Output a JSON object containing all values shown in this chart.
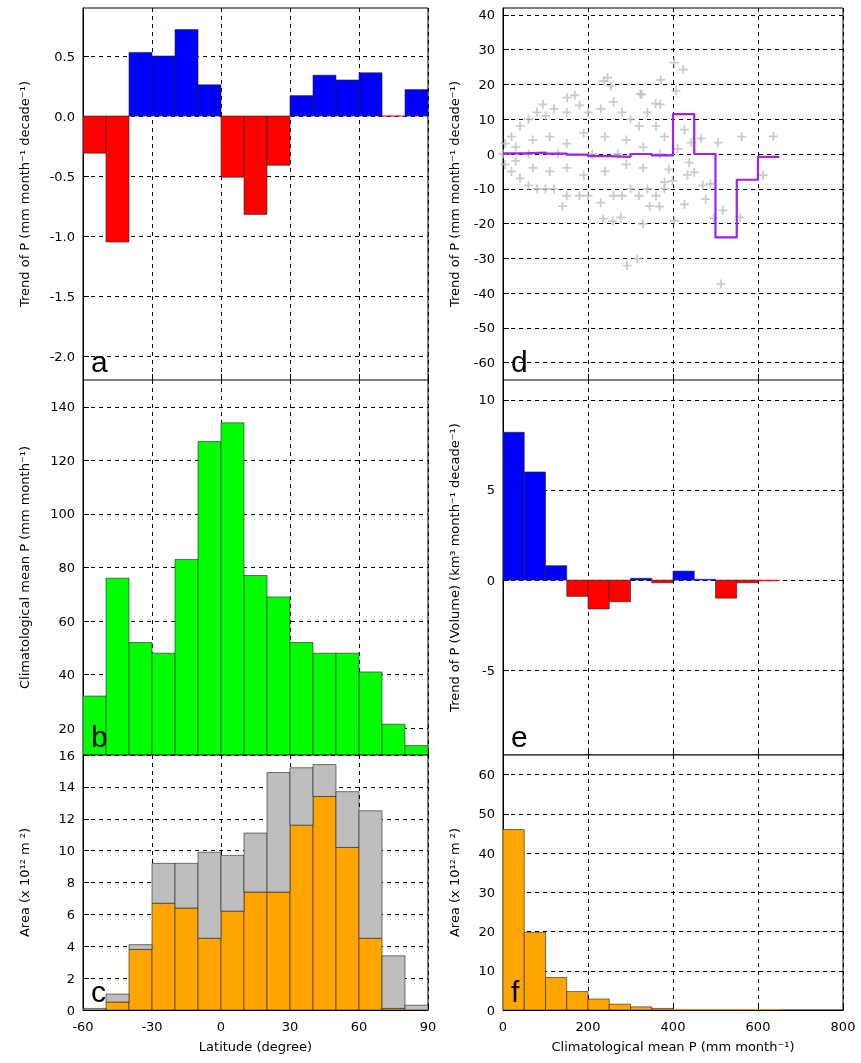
{
  "chart_data": [
    {
      "type": "histogram",
      "ylabel": "Trend of P (mm month⁻¹ decade⁻¹)",
      "annotations": [
        "a"
      ],
      "bins": [
        -60,
        -50,
        -40,
        -30,
        -20,
        -10,
        0,
        10,
        20,
        30,
        40,
        50,
        60,
        70,
        80,
        90
      ],
      "values": [
        -0.31,
        -1.05,
        0.53,
        0.5,
        0.72,
        0.26,
        -0.51,
        -0.82,
        -0.41,
        0.17,
        0.34,
        0.3,
        0.36,
        0,
        0.22
      ],
      "colors": [
        "#ff0000",
        "#ff0000",
        "#0000ff",
        "#0000ff",
        "#0000ff",
        "#0000ff",
        "#ff0000",
        "#ff0000",
        "#ff0000",
        "#0000ff",
        "#0000ff",
        "#0000ff",
        "#0000ff",
        "#ff0000",
        "#0000ff"
      ],
      "xlim": [
        -60,
        90
      ],
      "xticks": [
        -60,
        -30,
        0,
        30,
        60,
        90
      ],
      "ylim": [
        -2.2,
        0.9
      ],
      "yticks": [
        {
          "value": -2,
          "label": "-2.0"
        },
        {
          "value": -1.5,
          "label": "-1.5"
        },
        {
          "value": -1,
          "label": "-1.0"
        },
        {
          "value": -0.5,
          "label": "-0.5"
        },
        {
          "value": 0,
          "label": "0.0"
        },
        {
          "value": 0.5,
          "label": "0.5"
        }
      ],
      "grid": true,
      "tick_labels": "y"
    },
    {
      "type": "scatter",
      "ylabel": "Trend of P (mm month⁻¹ decade⁻¹)",
      "annotations": [
        "d"
      ],
      "series": [
        {
          "type": "scatter",
          "color": "#bebebe",
          "marker": "cross",
          "x": [
            0,
            5,
            5,
            20,
            20,
            40,
            40,
            60,
            60,
            80,
            80,
            100,
            100,
            120,
            120,
            150,
            150,
            180,
            180,
            200,
            200,
            230,
            230,
            260,
            260,
            280,
            280,
            300,
            300,
            320,
            320,
            340,
            340,
            360,
            360,
            380,
            380,
            30,
            30,
            70,
            70,
            110,
            110,
            150,
            150,
            190,
            190,
            240,
            240,
            290,
            290,
            330,
            330,
            370,
            60,
            130,
            210,
            270,
            246,
            254,
            237,
            371,
            403,
            424,
            407,
            323,
            359,
            427,
            466,
            506,
            562,
            636,
            411,
            443,
            438,
            434,
            450,
            470,
            477,
            488,
            427,
            403,
            399,
            517,
            496,
            558,
            612,
            513,
            292,
            316,
            329,
            258,
            236,
            277,
            140,
            368,
            345,
            380,
            390,
            151,
            169,
            94,
            326,
            370
          ],
          "values": [
            0,
            3,
            -3,
            5,
            -5,
            8,
            -7,
            10,
            -9,
            12,
            -10,
            11,
            -10,
            13,
            -10,
            12,
            -12,
            14,
            -12,
            12,
            -12,
            13,
            -14,
            15,
            -12,
            12,
            -12,
            10,
            -10,
            8,
            -12,
            12,
            -10,
            8,
            -12,
            5,
            -10,
            2,
            -2,
            4,
            -4,
            5,
            -5,
            3,
            -4,
            6,
            -6,
            5,
            -5,
            4,
            -3,
            2,
            -4,
            0,
            0,
            0,
            0,
            0,
            22,
            19.6,
            21,
            21.3,
            26.3,
            24.3,
            18.2,
            17.3,
            14.5,
            7,
            4.5,
            3.3,
            5,
            5.1,
            1.5,
            3.3,
            -2.5,
            -6,
            -5.3,
            -9,
            -13,
            -8.6,
            -14.5,
            -19.2,
            -7.7,
            -16.2,
            -18.4,
            -18.2,
            -6.1,
            -37.4,
            -32.1,
            -30.1,
            -20.1,
            -19.3,
            -18.6,
            -18.2,
            -15,
            -15.1,
            -15,
            -8.1,
            -4.4,
            16.2,
            16.9,
            14.3,
            17.1,
            14.3
          ]
        },
        {
          "type": "step",
          "color": "#a020f0",
          "x": [
            0,
            50,
            100,
            150,
            200,
            250,
            300,
            350,
            400,
            450,
            500,
            550,
            600,
            650
          ],
          "values": [
            0.2,
            0.4,
            0.1,
            -0.2,
            -0.6,
            -0.8,
            0,
            -0.4,
            11.5,
            0,
            -24,
            -7.4,
            -0.8,
            -0.8
          ]
        }
      ],
      "xlim": [
        0,
        800
      ],
      "xticks": [
        0,
        200,
        400,
        600,
        800
      ],
      "ylim": [
        -65,
        42
      ],
      "yticks": [
        -60,
        -50,
        -40,
        -30,
        -20,
        -10,
        0,
        10,
        20,
        30,
        40
      ],
      "grid": true,
      "tick_labels": "y"
    },
    {
      "type": "histogram",
      "ylabel": "Climatological mean P (mm month⁻¹)",
      "annotations": [
        "b"
      ],
      "bins": [
        -60,
        -50,
        -40,
        -30,
        -20,
        -10,
        0,
        10,
        20,
        30,
        40,
        50,
        60,
        70,
        80,
        90
      ],
      "values": [
        32,
        76,
        52,
        48,
        83,
        127,
        134,
        77,
        69,
        52,
        48,
        48,
        41,
        21.5,
        13.5
      ],
      "color": "#00ff00",
      "xlim": [
        -60,
        90
      ],
      "xticks": [
        -60,
        -30,
        0,
        30,
        60,
        90
      ],
      "ylim": [
        10,
        150
      ],
      "yticks": [
        20,
        40,
        60,
        80,
        100,
        120,
        140
      ],
      "grid": true,
      "tick_labels": "y"
    },
    {
      "type": "histogram",
      "ylabel": "Trend of P (Volume) (km³ month⁻¹ decade⁻¹)",
      "annotations": [
        "e"
      ],
      "bins": [
        0,
        50,
        100,
        150,
        200,
        250,
        300,
        350,
        400,
        450,
        500,
        550,
        600,
        650
      ],
      "values": [
        8.2,
        6,
        0.8,
        -0.9,
        -1.6,
        -1.2,
        0.1,
        -0.15,
        0.5,
        0.04,
        -1,
        -0.15,
        -0.04
      ],
      "colors": [
        "#0000ff",
        "#0000ff",
        "#0000ff",
        "#ff0000",
        "#ff0000",
        "#ff0000",
        "#0000ff",
        "#ff0000",
        "#0000ff",
        "#0000ff",
        "#ff0000",
        "#ff0000",
        "#ff0000"
      ],
      "xlim": [
        0,
        800
      ],
      "xticks": [
        0,
        200,
        400,
        600,
        800
      ],
      "ylim": [
        -9.7,
        11.1
      ],
      "yticks": [
        -5,
        0,
        5,
        10
      ],
      "grid": true,
      "tick_labels": "y"
    },
    {
      "type": "bar",
      "ylabel": "Area (x 10¹² m ²)",
      "xlabel": "Latitude (degree)",
      "annotations": [
        "c"
      ],
      "stacked": true,
      "x": [
        -55,
        -45,
        -35,
        -25,
        -15,
        -5,
        5,
        15,
        25,
        35,
        45,
        55,
        65,
        75,
        85
      ],
      "series": [
        {
          "color": "#ffa500",
          "values": [
            null,
            0.5,
            3.8,
            6.7,
            6.4,
            4.5,
            6.2,
            7.4,
            7.4,
            11.6,
            13.4,
            10.2,
            4.5,
            0.1,
            0
          ]
        },
        {
          "color": "#bebebe",
          "values": [
            0.1,
            0.5,
            0.3,
            2.5,
            2.8,
            5.4,
            3.5,
            3.7,
            7.5,
            3.6,
            2,
            3.5,
            8,
            3.3,
            0.3
          ]
        }
      ],
      "xlim": [
        -60,
        90
      ],
      "xticks": [
        -60,
        -30,
        0,
        30,
        60,
        90
      ],
      "ylim": [
        0,
        16
      ],
      "yticks": [
        0,
        2,
        4,
        6,
        8,
        10,
        12,
        14,
        16
      ],
      "grid": true
    },
    {
      "type": "histogram",
      "ylabel": "Area (x 10¹² m ²)",
      "xlabel": "Climatological mean P (mm month⁻¹)",
      "annotations": [
        "f"
      ],
      "bins": [
        0,
        50,
        100,
        150,
        200,
        250,
        300,
        350,
        400,
        450,
        500,
        550,
        600,
        650
      ],
      "values": [
        46,
        19.8,
        8.3,
        4.7,
        2.8,
        1.5,
        0.8,
        0.4,
        0.1,
        0.1,
        0.1,
        0.1,
        0.1
      ],
      "color": "#ffa500",
      "xlim": [
        0,
        800
      ],
      "xticks": [
        0,
        200,
        400,
        600,
        800
      ],
      "ylim": [
        0,
        65
      ],
      "yticks": [
        0,
        10,
        20,
        30,
        40,
        50,
        60
      ],
      "grid": true
    }
  ]
}
